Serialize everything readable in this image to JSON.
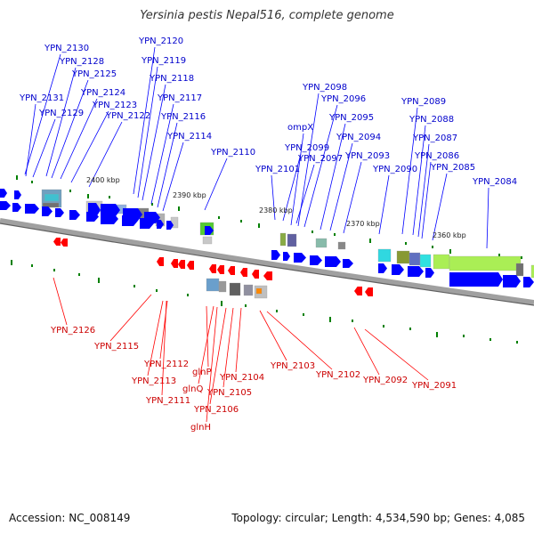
{
  "title": "Yersinia pestis Nepal516, complete genome",
  "footer": {
    "accession": "Accession: NC_008149",
    "summary": "Topology: circular; Length: 4,534,590 bp; Genes: 4,085"
  },
  "colors": {
    "forward_gene": "#0000ff",
    "reverse_gene": "#ff0000",
    "forward_label": "#0000cc",
    "reverse_label": "#cc0000",
    "backbone": "#808080",
    "tick": "#008000",
    "rna_feature": "#99dd33"
  },
  "kbp_marks": [
    "2400 kbp",
    "2390 kbp",
    "2380 kbp",
    "2370 kbp",
    "2360 kbp"
  ],
  "forward_labels": [
    "YPN_2130",
    "YPN_2128",
    "YPN_2125",
    "YPN_2131",
    "YPN_2129",
    "YPN_2124",
    "YPN_2123",
    "YPN_2122",
    "YPN_2120",
    "YPN_2119",
    "YPN_2118",
    "YPN_2117",
    "YPN_2116",
    "YPN_2114",
    "YPN_2110",
    "YPN_2098",
    "YPN_2096",
    "ompX",
    "YPN_2095",
    "YPN_2099",
    "YPN_2094",
    "YPN_2097",
    "YPN_2093",
    "YPN_2101",
    "YPN_2090",
    "YPN_2089",
    "YPN_2088",
    "YPN_2087",
    "YPN_2086",
    "YPN_2085",
    "YPN_2084"
  ],
  "reverse_labels": [
    "YPN_2126",
    "YPN_2115",
    "YPN_2112",
    "YPN_2113",
    "glnP",
    "glnQ",
    "YPN_2111",
    "YPN_2104",
    "YPN_2105",
    "YPN_2106",
    "glnH",
    "YPN_2103",
    "YPN_2102",
    "YPN_2092",
    "YPN_2091"
  ]
}
